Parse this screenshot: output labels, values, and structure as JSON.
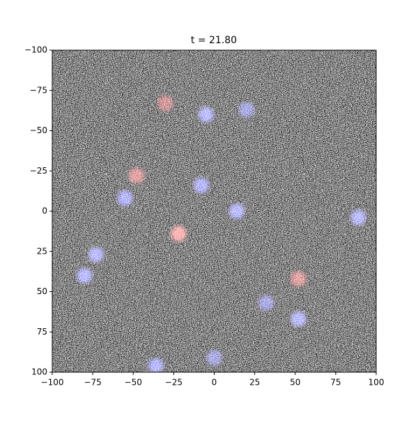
{
  "chart_data": {
    "type": "image",
    "title": "t = 21.80",
    "xlim": [
      -100,
      100
    ],
    "ylim": [
      -100,
      100
    ],
    "y_inverted": true,
    "xticks": [
      {
        "value": -100,
        "label": "−100"
      },
      {
        "value": -75,
        "label": "−75"
      },
      {
        "value": -50,
        "label": "−50"
      },
      {
        "value": -25,
        "label": "−25"
      },
      0,
      25,
      50,
      75,
      100
    ],
    "yticks": [
      {
        "value": -100,
        "label": "−100"
      },
      {
        "value": -75,
        "label": "−75"
      },
      {
        "value": -50,
        "label": "−50"
      },
      {
        "value": -25,
        "label": "−25"
      },
      0,
      25,
      50,
      75,
      100
    ],
    "features": [
      {
        "x": -5,
        "y": -60,
        "color": "#7777ff"
      },
      {
        "x": 20,
        "y": -63,
        "color": "#5555cc"
      },
      {
        "x": -8,
        "y": -16,
        "color": "#6f6fff"
      },
      {
        "x": -55,
        "y": -8,
        "color": "#6f6fff"
      },
      {
        "x": 14,
        "y": 0,
        "color": "#7777ff"
      },
      {
        "x": 89,
        "y": 4,
        "color": "#7777ff"
      },
      {
        "x": -73,
        "y": 27,
        "color": "#7777ff"
      },
      {
        "x": -80,
        "y": 40,
        "color": "#7777ff"
      },
      {
        "x": 52,
        "y": 67,
        "color": "#7777ff"
      },
      {
        "x": -36,
        "y": 96,
        "color": "#6f6fff"
      },
      {
        "x": 0,
        "y": 91,
        "color": "#5555cc"
      },
      {
        "x": 32,
        "y": 57,
        "color": "#5555cc"
      },
      {
        "x": -22,
        "y": 14,
        "color": "#ff6666"
      },
      {
        "x": -48,
        "y": -22,
        "color": "#cc4444"
      },
      {
        "x": -30,
        "y": -67,
        "color": "#aa3333"
      },
      {
        "x": 52,
        "y": 42,
        "color": "#cc4444"
      }
    ]
  }
}
